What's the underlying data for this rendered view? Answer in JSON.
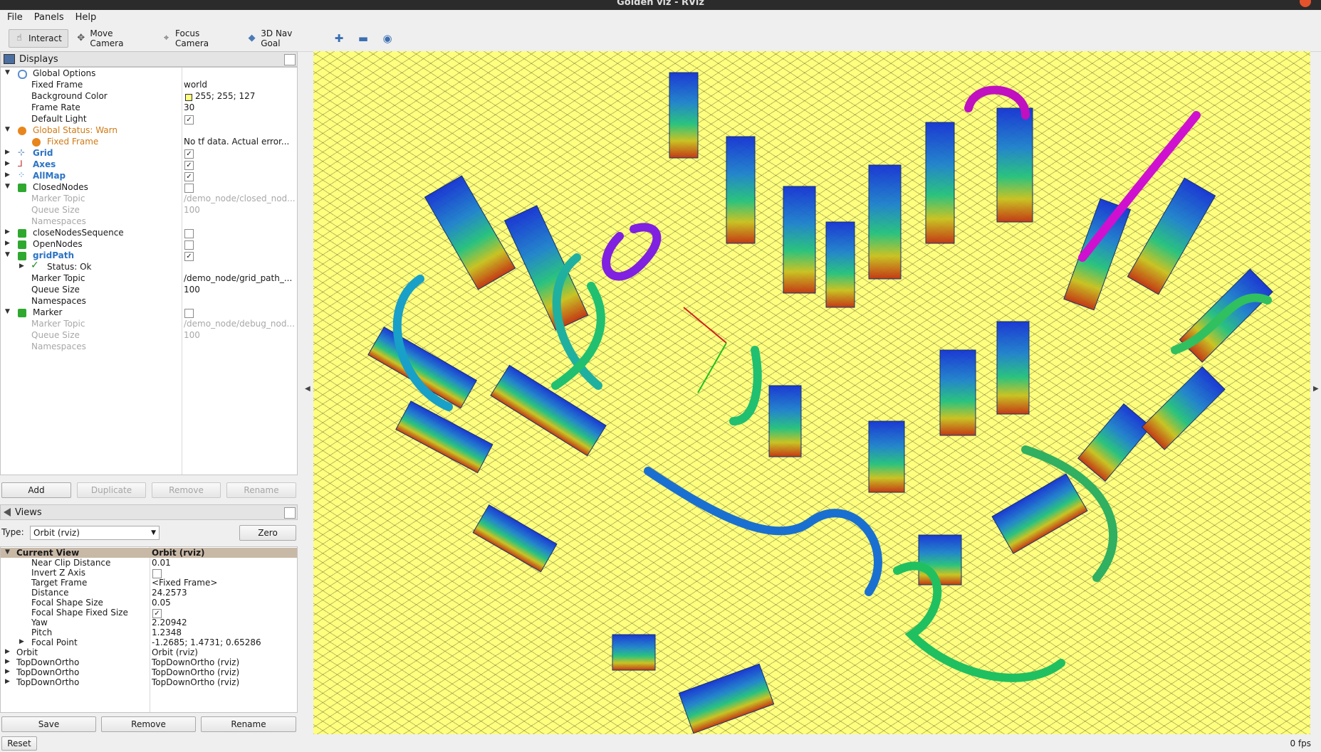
{
  "window": {
    "title": "Golden viz - RViz"
  },
  "menu": {
    "file": "File",
    "panels": "Panels",
    "help": "Help"
  },
  "toolbar": {
    "interact": "Interact",
    "move_camera": "Move Camera",
    "focus_camera": "Focus Camera",
    "nav_goal": "3D Nav Goal"
  },
  "displays": {
    "title": "Displays",
    "global_options": "Global Options",
    "fixed_frame_label": "Fixed Frame",
    "fixed_frame_value": "world",
    "bg_color_label": "Background Color",
    "bg_color_value": "255; 255; 127",
    "bg_color_hex": "#ffff7f",
    "frame_rate_label": "Frame Rate",
    "frame_rate_value": "30",
    "default_light_label": "Default Light",
    "global_status": "Global Status: Warn",
    "status_fixed_frame": "Fixed Frame",
    "status_fixed_frame_value": "No tf data.  Actual error...",
    "grid": "Grid",
    "axes": "Axes",
    "allmap": "AllMap",
    "closednodes": "ClosedNodes",
    "closed_marker_topic_label": "Marker Topic",
    "closed_marker_topic_value": "/demo_node/closed_nod...",
    "closed_queue_label": "Queue Size",
    "closed_queue_value": "100",
    "closed_ns_label": "Namespaces",
    "closenodesseq": "closeNodesSequence",
    "opennodes": "OpenNodes",
    "gridpath": "gridPath",
    "gridpath_status": "Status: Ok",
    "gp_marker_topic_label": "Marker Topic",
    "gp_marker_topic_value": "/demo_node/grid_path_...",
    "gp_queue_label": "Queue Size",
    "gp_queue_value": "100",
    "gp_ns_label": "Namespaces",
    "marker": "Marker",
    "m_marker_topic_label": "Marker Topic",
    "m_marker_topic_value": "/demo_node/debug_nod...",
    "m_queue_label": "Queue Size",
    "m_queue_value": "100",
    "m_ns_label": "Namespaces",
    "btn_add": "Add",
    "btn_duplicate": "Duplicate",
    "btn_remove": "Remove",
    "btn_rename": "Rename"
  },
  "views": {
    "title": "Views",
    "type_label": "Type:",
    "type_value": "Orbit (rviz)",
    "zero": "Zero",
    "current_view": "Current View",
    "current_view_value": "Orbit (rviz)",
    "near_clip_label": "Near Clip Distance",
    "near_clip_value": "0.01",
    "invert_z_label": "Invert Z Axis",
    "target_frame_label": "Target Frame",
    "target_frame_value": "<Fixed Frame>",
    "distance_label": "Distance",
    "distance_value": "24.2573",
    "focal_size_label": "Focal Shape Size",
    "focal_size_value": "0.05",
    "focal_fixed_label": "Focal Shape Fixed Size",
    "yaw_label": "Yaw",
    "yaw_value": "2.20942",
    "pitch_label": "Pitch",
    "pitch_value": "1.2348",
    "focal_point_label": "Focal Point",
    "focal_point_value": "-1.2685; 1.4731; 0.65286",
    "saved": [
      {
        "name": "Orbit",
        "value": "Orbit (rviz)"
      },
      {
        "name": "TopDownOrtho",
        "value": "TopDownOrtho (rviz)"
      },
      {
        "name": "TopDownOrtho",
        "value": "TopDownOrtho (rviz)"
      },
      {
        "name": "TopDownOrtho",
        "value": "TopDownOrtho (rviz)"
      }
    ],
    "btn_save": "Save",
    "btn_remove": "Remove",
    "btn_rename": "Rename"
  },
  "statusbar": {
    "reset": "Reset",
    "fps": "0 fps"
  },
  "colors": {
    "viewport_bg": "#ffff7f",
    "warn": "#d07a16",
    "link_blue": "#2b73c4"
  }
}
